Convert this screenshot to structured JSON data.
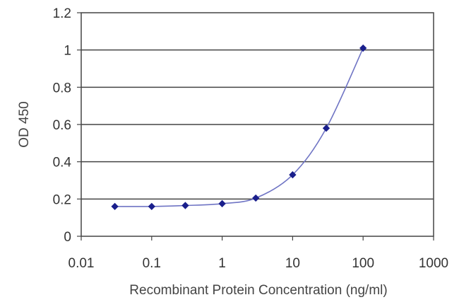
{
  "chart_data": {
    "type": "scatter",
    "xlabel": "Recombinant Protein Concentration (ng/ml)",
    "ylabel": "OD 450",
    "x_scale": "log",
    "xlim": [
      0.01,
      1000
    ],
    "ylim": [
      0,
      1.2
    ],
    "x_ticks": [
      "0.01",
      "0.1",
      "1",
      "10",
      "100",
      "1000"
    ],
    "y_ticks": [
      "0",
      "0.2",
      "0.4",
      "0.6",
      "0.8",
      "1",
      "1.2"
    ],
    "grid": "horizontal",
    "series": [
      {
        "x": [
          0.03,
          0.1,
          0.3,
          1,
          3,
          10,
          30,
          100
        ],
        "y": [
          0.16,
          0.16,
          0.165,
          0.175,
          0.205,
          0.33,
          0.58,
          1.01
        ],
        "color": "#1a1f8c",
        "line_color": "#6f74c4",
        "fit": "sigmoid"
      }
    ]
  }
}
